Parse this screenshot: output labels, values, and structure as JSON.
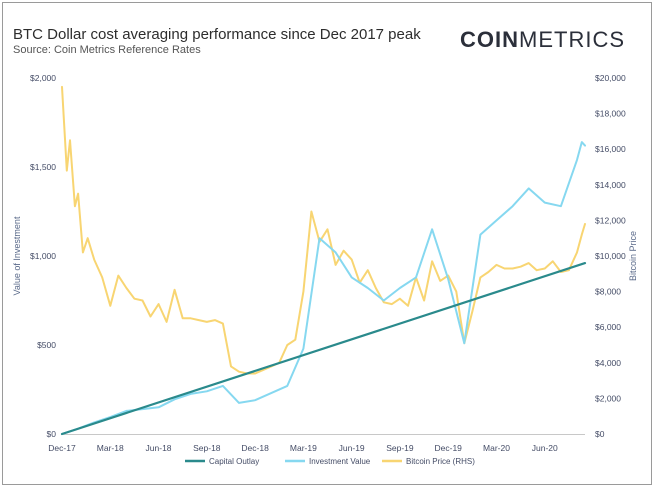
{
  "header": {
    "title": "BTC Dollar cost averaging performance since Dec 2017 peak",
    "subtitle": "Source: Coin Metrics Reference Rates",
    "logo_bold": "COIN",
    "logo_light": "METRICS"
  },
  "colors": {
    "capital": "#2a8a8c",
    "investment": "#86d8f0",
    "bitcoin": "#f8d572",
    "tick": "#444c66"
  },
  "chart_data": {
    "type": "line",
    "title": "BTC Dollar cost averaging performance since Dec 2017 peak",
    "ylabel": "Value of Investment",
    "y2label": "Bitcoin Price",
    "x_tick_labels": [
      "Dec-17",
      "Mar-18",
      "Jun-18",
      "Sep-18",
      "Dec-18",
      "Mar-19",
      "Jun-19",
      "Sep-19",
      "Dec-19",
      "Mar-20",
      "Jun-20"
    ],
    "x_range_months": [
      0,
      32.5
    ],
    "ylim": [
      0,
      2000
    ],
    "y_ticks": [
      "$0",
      "$500",
      "$1,000",
      "$1,500",
      "$2,000"
    ],
    "y2lim": [
      0,
      20000
    ],
    "y2_ticks": [
      "$0",
      "$2,000",
      "$4,000",
      "$6,000",
      "$8,000",
      "$10,000",
      "$12,000",
      "$14,000",
      "$16,000",
      "$18,000",
      "$20,000"
    ],
    "legend": [
      "Capital Outlay",
      "Investment Value",
      "Bitcoin Price (RHS)"
    ],
    "legend_position": "bottom",
    "series": [
      {
        "name": "Capital Outlay",
        "axis": "left",
        "x": [
          0,
          32.5
        ],
        "values": [
          0,
          960
        ]
      },
      {
        "name": "Investment Value",
        "axis": "left",
        "x": [
          0,
          1,
          2,
          3,
          4,
          5,
          6,
          7,
          8,
          9,
          10,
          11,
          12,
          13,
          14,
          15,
          16,
          17,
          18,
          19,
          20,
          21,
          22,
          23,
          24,
          25,
          26,
          27,
          28,
          29,
          30,
          31,
          32,
          32.3,
          32.5
        ],
        "values": [
          0,
          30,
          65,
          95,
          130,
          140,
          150,
          195,
          225,
          240,
          270,
          175,
          190,
          230,
          270,
          480,
          1100,
          1020,
          880,
          820,
          750,
          820,
          880,
          1150,
          870,
          510,
          1120,
          1200,
          1280,
          1380,
          1300,
          1280,
          1540,
          1640,
          1620
        ]
      },
      {
        "name": "Bitcoin Price (RHS)",
        "axis": "right",
        "x": [
          0,
          0.3,
          0.5,
          0.8,
          1,
          1.3,
          1.6,
          2,
          2.5,
          3,
          3.5,
          4,
          4.5,
          5,
          5.5,
          6,
          6.5,
          7,
          7.5,
          8,
          8.5,
          9,
          9.5,
          10,
          10.5,
          11,
          11.5,
          12,
          12.5,
          13,
          13.5,
          14,
          14.5,
          15,
          15.5,
          16,
          16.5,
          17,
          17.5,
          18,
          18.5,
          19,
          19.5,
          20,
          20.5,
          21,
          21.5,
          22,
          22.5,
          23,
          23.5,
          24,
          24.5,
          25,
          25.5,
          26,
          26.5,
          27,
          27.5,
          28,
          28.5,
          29,
          29.5,
          30,
          30.5,
          31,
          31.5,
          32,
          32.3,
          32.5
        ],
        "values": [
          19500,
          14800,
          16500,
          12800,
          13500,
          10200,
          11000,
          9800,
          8800,
          7200,
          8900,
          8200,
          7600,
          7500,
          6600,
          7300,
          6300,
          8100,
          6500,
          6500,
          6400,
          6300,
          6400,
          6200,
          3800,
          3500,
          3400,
          3400,
          3600,
          3800,
          4000,
          5000,
          5300,
          8000,
          12500,
          10800,
          11500,
          9500,
          10300,
          9800,
          8500,
          9200,
          8200,
          7400,
          7300,
          7600,
          7200,
          8800,
          7500,
          9700,
          8600,
          8900,
          8000,
          5100,
          6900,
          8800,
          9100,
          9500,
          9300,
          9300,
          9400,
          9600,
          9200,
          9300,
          9700,
          9100,
          9200,
          10200,
          11200,
          11800
        ]
      }
    ]
  }
}
